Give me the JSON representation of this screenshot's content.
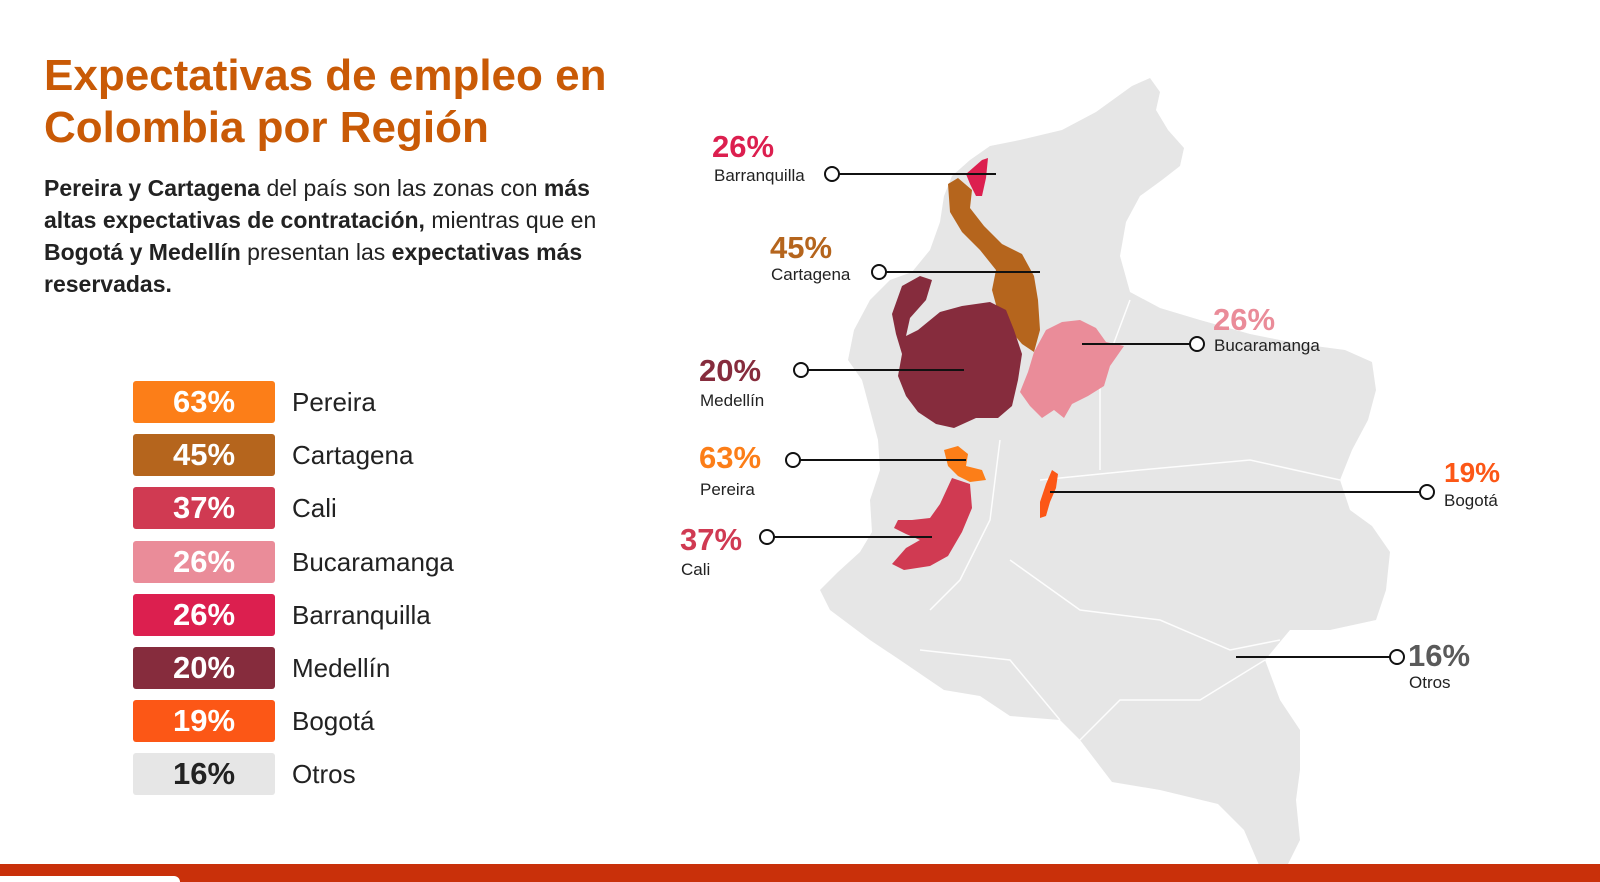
{
  "title": {
    "line1": "Expectativas de empleo en",
    "line2": "Colombia por Región"
  },
  "intro": {
    "b1": "Pereira y Cartagena",
    "t1": " del país son las zonas con ",
    "b2": "más altas expectativas de contratación,",
    "t2": " mientras que en ",
    "b3": "Bogotá y Medellín",
    "t3": " presentan las ",
    "b4": "expectativas más reservadas."
  },
  "colors": {
    "title": "#c95a06",
    "pereira": "#fc7e18",
    "cartagena": "#b5651d",
    "cali": "#d03a52",
    "bucaramanga": "#ea8c99",
    "barranquilla": "#dc1f4f",
    "medellin": "#862c3d",
    "bogota": "#fc5716",
    "otros": "#e6e6e6",
    "land": "#e6e6e6",
    "bottom_bar": "#c9300a"
  },
  "legend": [
    {
      "pct": "63%",
      "label": "Pereira",
      "color": "#fc7e18"
    },
    {
      "pct": "45%",
      "label": "Cartagena",
      "color": "#b5651d"
    },
    {
      "pct": "37%",
      "label": "Cali",
      "color": "#d03a52"
    },
    {
      "pct": "26%",
      "label": "Bucaramanga",
      "color": "#ea8c99"
    },
    {
      "pct": "26%",
      "label": "Barranquilla",
      "color": "#dc1f4f"
    },
    {
      "pct": "20%",
      "label": "Medellín",
      "color": "#862c3d"
    },
    {
      "pct": "19%",
      "label": "Bogotá",
      "color": "#fc5716"
    },
    {
      "pct": "16%",
      "label": "Otros",
      "color": "#e6e6e6"
    }
  ],
  "callouts": {
    "barranquilla": {
      "pct": "26%",
      "name": "Barranquilla",
      "color": "#dc1f4f"
    },
    "cartagena": {
      "pct": "45%",
      "name": "Cartagena",
      "color": "#b5651d"
    },
    "bucaramanga": {
      "pct": "26%",
      "name": "Bucaramanga",
      "color": "#ea8c99"
    },
    "medellin": {
      "pct": "20%",
      "name": "Medellín",
      "color": "#862c3d"
    },
    "pereira": {
      "pct": "63%",
      "name": "Pereira",
      "color": "#fc7e18"
    },
    "bogota": {
      "pct": "19%",
      "name": "Bogotá",
      "color": "#fc5716"
    },
    "cali": {
      "pct": "37%",
      "name": "Cali",
      "color": "#d03a52"
    },
    "otros": {
      "pct": "16%",
      "name": "Otros",
      "color": "#5a5a5a"
    }
  }
}
